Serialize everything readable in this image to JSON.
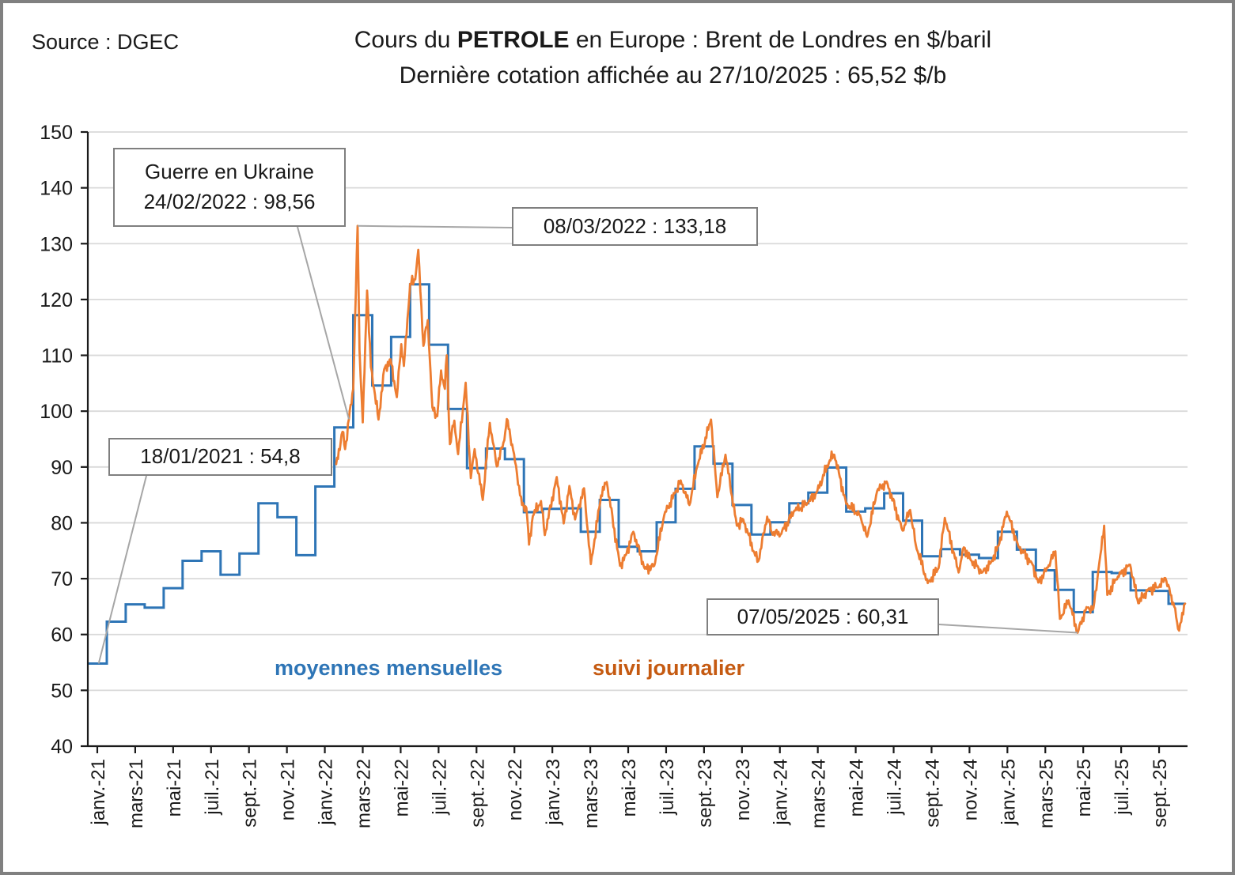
{
  "header": {
    "source": "Source : DGEC",
    "title_prefix": "Cours du ",
    "title_bold": "PETROLE",
    "title_suffix": " en Europe : Brent de Londres en $/baril",
    "subtitle": "Dernière cotation affichée au 27/10/2025 : 65,52 $/b"
  },
  "legend": {
    "monthly": "moyennes mensuelles",
    "daily": "suivi journalier"
  },
  "colors": {
    "monthly_line": "#2E75B6",
    "daily_line": "#ED7D31",
    "monthly_text": "#2E75B6",
    "daily_text": "#C55A11",
    "gridline": "#D9D9D9",
    "axis": "#1a1a1a",
    "leader": "#A6A6A6",
    "annotation_border": "#7F7F7F"
  },
  "chart_data": {
    "type": "line",
    "title": "Cours du PETROLE en Europe : Brent de Londres en $/baril",
    "subtitle": "Dernière cotation affichée au 27/10/2025 : 65,52 $/b",
    "source": "DGEC",
    "grid": "horizontal",
    "y_axis": {
      "min": 40,
      "max": 150,
      "step": 10,
      "ticks": [
        40,
        50,
        60,
        70,
        80,
        90,
        100,
        110,
        120,
        130,
        140,
        150
      ]
    },
    "x_axis": {
      "start_month": "2021-01",
      "end_month": "2025-10",
      "total_months": 58,
      "label_every_months": 2,
      "labels": [
        "janv.-21",
        "mars-21",
        "mai-21",
        "juil.-21",
        "sept.-21",
        "nov.-21",
        "janv.-22",
        "mars-22",
        "mai-22",
        "juil.-22",
        "sept.-22",
        "nov.-22",
        "janv.-23",
        "mars-23",
        "mai-23",
        "juil.-23",
        "sept.-23",
        "nov.-23",
        "janv.-24",
        "mars-24",
        "mai-24",
        "juil.-24",
        "sept.-24",
        "nov.-24",
        "janv.-25",
        "mars-25",
        "mai-25",
        "juil.-25",
        "sept.-25"
      ]
    },
    "series": [
      {
        "name": "moyennes mensuelles",
        "style": "step",
        "color": "#2E75B6",
        "start_month": "2021-01",
        "values": [
          54.8,
          62.3,
          65.4,
          64.8,
          68.3,
          73.2,
          74.9,
          70.7,
          74.5,
          83.5,
          81.0,
          74.2,
          86.5,
          97.1,
          117.2,
          104.6,
          113.3,
          122.7,
          111.9,
          100.4,
          89.8,
          93.3,
          91.4,
          81.9,
          82.5,
          82.6,
          78.4,
          84.1,
          75.7,
          74.9,
          80.1,
          86.1,
          93.7,
          90.6,
          83.2,
          77.9,
          80.1,
          83.5,
          85.4,
          89.9,
          82.0,
          82.6,
          85.3,
          80.4,
          74.0,
          75.3,
          74.3,
          73.7,
          78.4,
          75.2,
          71.5,
          68.0,
          64.0,
          71.2,
          71.0,
          67.9,
          67.8,
          65.5
        ]
      },
      {
        "name": "suivi journalier",
        "style": "daily",
        "color": "#ED7D31",
        "note": "anchors are [months since Jan 2021 (fractional), price $/b]; daily series starts Feb 2022",
        "anchors": [
          [
            13.1,
            90.5
          ],
          [
            13.43,
            96.3
          ],
          [
            13.57,
            93.2
          ],
          [
            13.77,
            98.56
          ],
          [
            14.0,
            104.0
          ],
          [
            14.23,
            133.18
          ],
          [
            14.33,
            111.0
          ],
          [
            14.5,
            98.0
          ],
          [
            14.73,
            121.6
          ],
          [
            14.93,
            107.9
          ],
          [
            15.1,
            104.0
          ],
          [
            15.33,
            98.5
          ],
          [
            15.63,
            107.5
          ],
          [
            15.97,
            109.3
          ],
          [
            16.3,
            102.5
          ],
          [
            16.53,
            112.0
          ],
          [
            16.67,
            108.1
          ],
          [
            17.0,
            122.8
          ],
          [
            17.27,
            123.6
          ],
          [
            17.43,
            128.9
          ],
          [
            17.7,
            111.7
          ],
          [
            17.93,
            116.3
          ],
          [
            18.17,
            100.7
          ],
          [
            18.43,
            99.1
          ],
          [
            18.63,
            107.3
          ],
          [
            18.83,
            104.0
          ],
          [
            18.93,
            110.0
          ],
          [
            19.1,
            94.1
          ],
          [
            19.33,
            98.3
          ],
          [
            19.53,
            92.3
          ],
          [
            19.93,
            105.1
          ],
          [
            20.2,
            88.0
          ],
          [
            20.4,
            93.2
          ],
          [
            20.83,
            84.1
          ],
          [
            21.2,
            97.9
          ],
          [
            21.57,
            90.1
          ],
          [
            21.97,
            94.8
          ],
          [
            22.1,
            98.6
          ],
          [
            22.43,
            93.1
          ],
          [
            22.9,
            83.2
          ],
          [
            23.13,
            82.7
          ],
          [
            23.27,
            76.1
          ],
          [
            23.47,
            81.2
          ],
          [
            23.9,
            83.9
          ],
          [
            24.1,
            77.8
          ],
          [
            24.73,
            88.2
          ],
          [
            25.1,
            79.9
          ],
          [
            25.4,
            86.6
          ],
          [
            25.7,
            80.6
          ],
          [
            26.17,
            86.2
          ],
          [
            26.53,
            72.6
          ],
          [
            27.07,
            84.9
          ],
          [
            27.37,
            87.3
          ],
          [
            28.07,
            72.3
          ],
          [
            28.37,
            74.2
          ],
          [
            28.77,
            78.4
          ],
          [
            29.37,
            71.8
          ],
          [
            29.87,
            72.3
          ],
          [
            30.4,
            81.4
          ],
          [
            31.0,
            85.6
          ],
          [
            31.27,
            87.6
          ],
          [
            31.73,
            83.2
          ],
          [
            32.13,
            90.0
          ],
          [
            32.87,
            98.5
          ],
          [
            33.2,
            84.6
          ],
          [
            33.63,
            92.2
          ],
          [
            34.23,
            79.5
          ],
          [
            34.57,
            80.6
          ],
          [
            35.2,
            74.1
          ],
          [
            35.37,
            73.2
          ],
          [
            35.83,
            81.1
          ],
          [
            36.07,
            78.3
          ],
          [
            36.53,
            77.9
          ],
          [
            37.27,
            82.2
          ],
          [
            38.0,
            83.6
          ],
          [
            38.43,
            85.4
          ],
          [
            39.13,
            91.2
          ],
          [
            39.37,
            92.2
          ],
          [
            40.0,
            83.4
          ],
          [
            40.73,
            81.4
          ],
          [
            41.1,
            77.5
          ],
          [
            41.63,
            85.7
          ],
          [
            42.13,
            87.4
          ],
          [
            42.97,
            78.6
          ],
          [
            43.37,
            82.3
          ],
          [
            43.67,
            76.0
          ],
          [
            44.3,
            69.2
          ],
          [
            44.87,
            71.9
          ],
          [
            45.2,
            80.9
          ],
          [
            45.93,
            71.1
          ],
          [
            46.2,
            75.6
          ],
          [
            46.57,
            73.3
          ],
          [
            47.17,
            71.1
          ],
          [
            47.63,
            72.9
          ],
          [
            48.03,
            75.9
          ],
          [
            48.47,
            82.0
          ],
          [
            49.07,
            75.9
          ],
          [
            49.83,
            72.5
          ],
          [
            50.13,
            69.3
          ],
          [
            50.63,
            72.0
          ],
          [
            51.03,
            74.9
          ],
          [
            51.27,
            62.8
          ],
          [
            51.73,
            66.1
          ],
          [
            52.2,
            60.31
          ],
          [
            52.67,
            64.9
          ],
          [
            53.03,
            64.6
          ],
          [
            53.4,
            74.2
          ],
          [
            53.6,
            79.5
          ],
          [
            53.77,
            67.1
          ],
          [
            54.33,
            70.4
          ],
          [
            54.97,
            72.5
          ],
          [
            55.4,
            65.6
          ],
          [
            55.93,
            68.1
          ],
          [
            56.5,
            68.5
          ],
          [
            56.83,
            70.1
          ],
          [
            57.3,
            65.0
          ],
          [
            57.5,
            61.0
          ],
          [
            57.67,
            62.3
          ],
          [
            57.87,
            65.52
          ]
        ]
      }
    ],
    "annotations": [
      {
        "id": "ukraine",
        "lines": [
          "Guerre en Ukraine",
          "24/02/2022 : 98,56"
        ],
        "target_month": 13.77,
        "target_value": 98.56
      },
      {
        "id": "peak",
        "lines": [
          "08/03/2022 : 133,18"
        ],
        "target_month": 14.23,
        "target_value": 133.18
      },
      {
        "id": "start",
        "lines": [
          "18/01/2021 : 54,8"
        ],
        "target_month": 0.57,
        "target_value": 54.8
      },
      {
        "id": "low2025",
        "lines": [
          "07/05/2025 : 60,31"
        ],
        "target_month": 52.2,
        "target_value": 60.31
      }
    ]
  }
}
